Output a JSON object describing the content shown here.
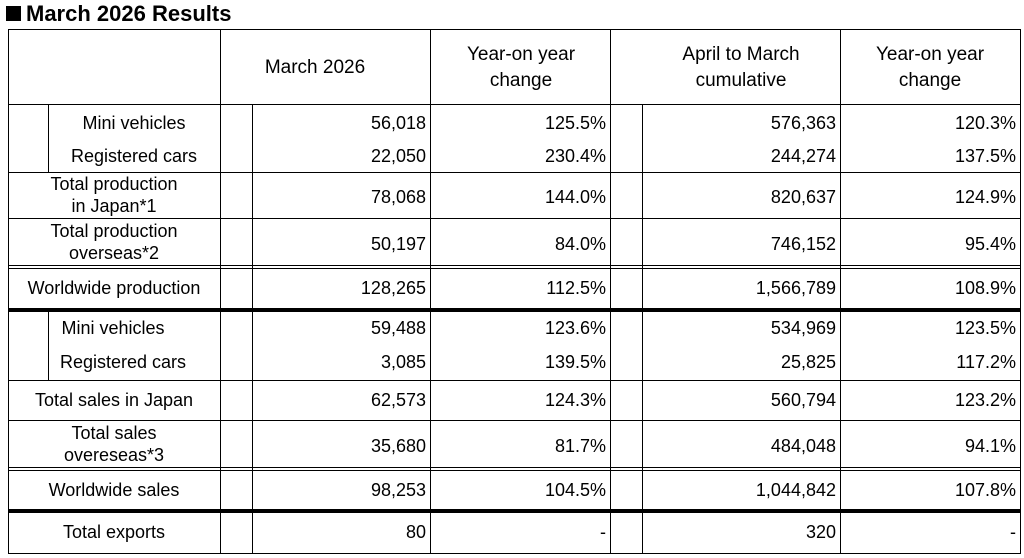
{
  "title": "March 2026 Results",
  "header": {
    "col1": "March 2026",
    "col2_line1": "Year-on year",
    "col2_line2": "change",
    "col3_line1": "April to March",
    "col3_line2": "cumulative",
    "col4_line1": "Year-on year",
    "col4_line2": "change"
  },
  "rows": [
    {
      "label1": "Mini vehicles",
      "label2": "",
      "values": [
        "56,018",
        "125.5%",
        "576,363",
        "120.3%"
      ]
    },
    {
      "label1": "Registered cars",
      "label2": "",
      "values": [
        "22,050",
        "230.4%",
        "244,274",
        "137.5%"
      ]
    },
    {
      "label1": "Total production",
      "label2": "in Japan*1",
      "values": [
        "78,068",
        "144.0%",
        "820,637",
        "124.9%"
      ]
    },
    {
      "label1": "Total production",
      "label2": "overseas*2",
      "values": [
        "50,197",
        "84.0%",
        "746,152",
        "95.4%"
      ]
    },
    {
      "label1": "Worldwide production",
      "label2": "",
      "values": [
        "128,265",
        "112.5%",
        "1,566,789",
        "108.9%"
      ]
    },
    {
      "label1": "Mini vehicles",
      "label2": "",
      "values": [
        "59,488",
        "123.6%",
        "534,969",
        "123.5%"
      ]
    },
    {
      "label1": "Registered cars",
      "label2": "",
      "values": [
        "3,085",
        "139.5%",
        "25,825",
        "117.2%"
      ]
    },
    {
      "label1": "Total sales in Japan",
      "label2": "",
      "values": [
        "62,573",
        "124.3%",
        "560,794",
        "123.2%"
      ]
    },
    {
      "label1": "Total sales",
      "label2": "overeseas*3",
      "values": [
        "35,680",
        "81.7%",
        "484,048",
        "94.1%"
      ]
    },
    {
      "label1": "Worldwide sales",
      "label2": "",
      "values": [
        "98,253",
        "104.5%",
        "1,044,842",
        "107.8%"
      ]
    },
    {
      "label1": "Total exports",
      "label2": "",
      "values": [
        "80",
        "-",
        "320",
        "-"
      ]
    }
  ]
}
